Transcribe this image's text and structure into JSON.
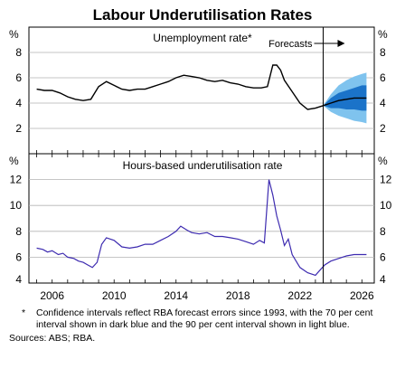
{
  "title": "Labour Underutilisation Rates",
  "footnote": {
    "marker": "*",
    "text": "Confidence intervals reflect RBA forecast errors since 1993, with the 70 per cent interval shown in dark blue and the 90 per cent interval shown in light blue."
  },
  "sources": "Sources: ABS; RBA.",
  "colors": {
    "unemployment_line": "#000000",
    "underutilisation_line": "#3d2bb0",
    "ci70": "#1b73c9",
    "ci90": "#7fc3ee",
    "grid": "#b3b3b3"
  },
  "chart_data": [
    {
      "type": "line",
      "title": "Unemployment rate*",
      "unit": "%",
      "ylim": [
        0,
        10
      ],
      "yticks": [
        2,
        4,
        6,
        8
      ],
      "grid": true,
      "annotation": "Forecasts",
      "series": [
        {
          "x": [
            2005.0,
            2005.5,
            2006.0,
            2006.5,
            2007.0,
            2007.5,
            2008.0,
            2008.5,
            2009.0,
            2009.5,
            2010.0,
            2010.5,
            2011.0,
            2011.5,
            2012.0,
            2012.5,
            2013.0,
            2013.5,
            2014.0,
            2014.5,
            2015.0,
            2015.5,
            2016.0,
            2016.5,
            2017.0,
            2017.5,
            2018.0,
            2018.5,
            2019.0,
            2019.5,
            2019.9,
            2020.25,
            2020.5,
            2020.75,
            2021.0,
            2021.5,
            2022.0,
            2022.5,
            2023.0,
            2023.5
          ],
          "values": [
            5.1,
            5.0,
            5.0,
            4.8,
            4.5,
            4.3,
            4.2,
            4.3,
            5.3,
            5.7,
            5.4,
            5.1,
            5.0,
            5.1,
            5.1,
            5.3,
            5.5,
            5.7,
            6.0,
            6.2,
            6.1,
            6.0,
            5.8,
            5.7,
            5.8,
            5.6,
            5.5,
            5.3,
            5.2,
            5.2,
            5.3,
            7.0,
            7.0,
            6.6,
            5.8,
            4.9,
            4.0,
            3.5,
            3.6,
            3.8
          ]
        },
        {
          "x": [
            2023.5,
            2024.0,
            2024.5,
            2025.0,
            2025.5,
            2026.0,
            2026.3
          ],
          "values": [
            3.8,
            4.0,
            4.2,
            4.3,
            4.4,
            4.4,
            4.4
          ],
          "ci70_upper": [
            3.8,
            4.4,
            4.8,
            5.0,
            5.2,
            5.4,
            5.4
          ],
          "ci70_lower": [
            3.8,
            3.6,
            3.6,
            3.5,
            3.5,
            3.4,
            3.4
          ],
          "ci90_upper": [
            3.8,
            4.7,
            5.4,
            5.8,
            6.1,
            6.3,
            6.4
          ],
          "ci90_lower": [
            3.8,
            3.3,
            3.0,
            2.8,
            2.6,
            2.5,
            2.4
          ]
        }
      ]
    },
    {
      "type": "line",
      "title": "Hours-based underutilisation rate",
      "unit": "%",
      "ylim": [
        4,
        14
      ],
      "yticks": [
        4,
        6,
        8,
        10,
        12
      ],
      "grid": true,
      "xticks": [
        "2006",
        "2010",
        "2014",
        "2018",
        "2022",
        "2026"
      ],
      "series": [
        {
          "x": [
            2005.0,
            2005.4,
            2005.7,
            2006.0,
            2006.4,
            2006.7,
            2007.0,
            2007.4,
            2007.7,
            2008.0,
            2008.3,
            2008.6,
            2008.9,
            2009.2,
            2009.5,
            2010.0,
            2010.5,
            2011.0,
            2011.5,
            2012.0,
            2012.5,
            2013.0,
            2013.5,
            2014.0,
            2014.3,
            2014.7,
            2015.0,
            2015.5,
            2016.0,
            2016.5,
            2017.0,
            2017.5,
            2018.0,
            2018.5,
            2019.0,
            2019.4,
            2019.7,
            2020.0,
            2020.25,
            2020.5,
            2020.75,
            2021.0,
            2021.25,
            2021.5,
            2022.0,
            2022.5,
            2023.0,
            2023.3,
            2023.6,
            2024.0,
            2024.5,
            2025.0,
            2025.5,
            2026.0,
            2026.3
          ],
          "values": [
            6.7,
            6.6,
            6.4,
            6.5,
            6.2,
            6.3,
            6.0,
            5.9,
            5.7,
            5.6,
            5.4,
            5.2,
            5.6,
            7.0,
            7.5,
            7.3,
            6.8,
            6.7,
            6.8,
            7.0,
            7.0,
            7.3,
            7.6,
            8.0,
            8.4,
            8.1,
            7.9,
            7.8,
            7.9,
            7.6,
            7.6,
            7.5,
            7.4,
            7.2,
            7.0,
            7.3,
            7.1,
            12.0,
            10.8,
            9.2,
            8.1,
            6.9,
            7.4,
            6.2,
            5.2,
            4.8,
            4.6,
            5.0,
            5.4,
            5.7,
            5.9,
            6.1,
            6.2,
            6.2,
            6.2
          ]
        }
      ]
    }
  ]
}
